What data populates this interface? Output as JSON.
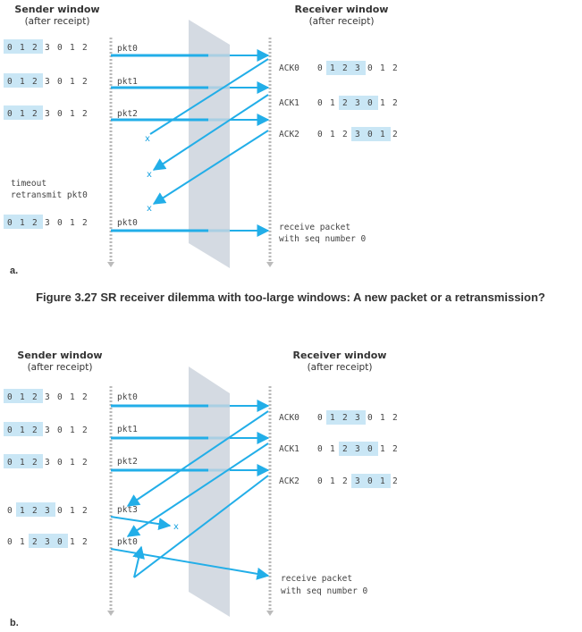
{
  "colors": {
    "arrow": "#22aee8",
    "highlight": "#c9e6f5",
    "panel": "#d4dae2",
    "timeline": "#b8b8b8"
  },
  "caption": "Figure 3.27 SR receiver dilemma with too-large windows: A new packet or a retransmission?",
  "panels": [
    {
      "label": "a.",
      "sender_header": [
        "Sender window",
        "(after receipt)"
      ],
      "receiver_header": [
        "Receiver window",
        "(after receipt)"
      ],
      "sender_windows": [
        {
          "digits": [
            "0",
            "1",
            "2",
            "3",
            "0",
            "1",
            "2"
          ],
          "highlight": [
            0,
            1,
            2
          ]
        },
        {
          "digits": [
            "0",
            "1",
            "2",
            "3",
            "0",
            "1",
            "2"
          ],
          "highlight": [
            0,
            1,
            2
          ]
        },
        {
          "digits": [
            "0",
            "1",
            "2",
            "3",
            "0",
            "1",
            "2"
          ],
          "highlight": [
            0,
            1,
            2
          ]
        },
        {
          "digits": [
            "0",
            "1",
            "2",
            "3",
            "0",
            "1",
            "2"
          ],
          "highlight": [
            0,
            1,
            2
          ]
        }
      ],
      "packet_labels": [
        "pkt0",
        "pkt1",
        "pkt2",
        "pkt0"
      ],
      "ack_labels": [
        "ACK0",
        "ACK1",
        "ACK2"
      ],
      "receiver_windows": [
        {
          "digits": [
            "0",
            "1",
            "2",
            "3",
            "0",
            "1",
            "2"
          ],
          "highlight": [
            1,
            2,
            3
          ]
        },
        {
          "digits": [
            "0",
            "1",
            "2",
            "3",
            "0",
            "1",
            "2"
          ],
          "highlight": [
            2,
            3,
            4
          ]
        },
        {
          "digits": [
            "0",
            "1",
            "2",
            "3",
            "0",
            "1",
            "2"
          ],
          "highlight": [
            3,
            4,
            5
          ]
        }
      ],
      "lost_marker": "x",
      "timeout_note": [
        "timeout",
        "retransmit pkt0"
      ],
      "receive_note": [
        "receive packet",
        "with seq number 0"
      ]
    },
    {
      "label": "b.",
      "sender_header": [
        "Sender window",
        "(after receipt)"
      ],
      "receiver_header": [
        "Receiver window",
        "(after receipt)"
      ],
      "sender_windows": [
        {
          "digits": [
            "0",
            "1",
            "2",
            "3",
            "0",
            "1",
            "2"
          ],
          "highlight": [
            0,
            1,
            2
          ]
        },
        {
          "digits": [
            "0",
            "1",
            "2",
            "3",
            "0",
            "1",
            "2"
          ],
          "highlight": [
            0,
            1,
            2
          ]
        },
        {
          "digits": [
            "0",
            "1",
            "2",
            "3",
            "0",
            "1",
            "2"
          ],
          "highlight": [
            0,
            1,
            2
          ]
        },
        {
          "digits": [
            "0",
            "1",
            "2",
            "3",
            "0",
            "1",
            "2"
          ],
          "highlight": [
            1,
            2,
            3
          ]
        },
        {
          "digits": [
            "0",
            "1",
            "2",
            "3",
            "0",
            "1",
            "2"
          ],
          "highlight": [
            2,
            3,
            4
          ]
        }
      ],
      "packet_labels": [
        "pkt0",
        "pkt1",
        "pkt2",
        "pkt3",
        "pkt0"
      ],
      "ack_labels": [
        "ACK0",
        "ACK1",
        "ACK2"
      ],
      "receiver_windows": [
        {
          "digits": [
            "0",
            "1",
            "2",
            "3",
            "0",
            "1",
            "2"
          ],
          "highlight": [
            1,
            2,
            3
          ]
        },
        {
          "digits": [
            "0",
            "1",
            "2",
            "3",
            "0",
            "1",
            "2"
          ],
          "highlight": [
            2,
            3,
            4
          ]
        },
        {
          "digits": [
            "0",
            "1",
            "2",
            "3",
            "0",
            "1",
            "2"
          ],
          "highlight": [
            3,
            4,
            5
          ]
        }
      ],
      "lost_marker": "x",
      "receive_note": [
        "receive packet",
        "with seq number 0"
      ]
    }
  ]
}
